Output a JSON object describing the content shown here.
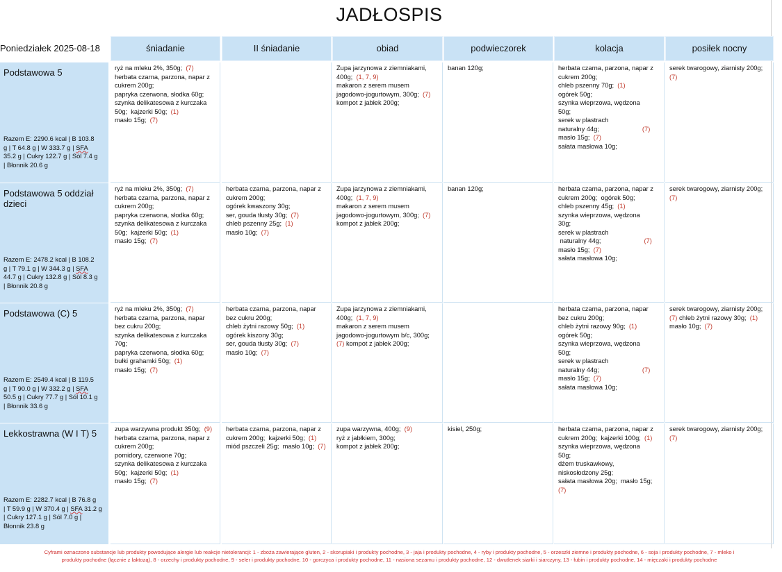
{
  "title": "JADŁOSPIS",
  "date_label": "Poniedziałek 2025-08-18",
  "columns": [
    "śniadanie",
    "II śniadanie",
    "obiad",
    "podwieczorek",
    "kolacja",
    "posiłek nocny"
  ],
  "rows": [
    {
      "name": "Podstawowa 5",
      "summary_lines": [
        "Razem E: 2290.6 kcal | B 103.8",
        "g | T 64.8 g | W 333.7 g | SFA",
        "35.2 g | Cukry 122.7 g | Sól 7.4 g",
        "| Błonnik 20.6 g"
      ],
      "cells": [
        [
          [
            "ryż na mleku 2%, 350g;  ",
            "(7)"
          ],
          [
            "herbata czarna, parzona, napar z"
          ],
          [
            "cukrem 200g;"
          ],
          [
            "papryka czerwona, słodka 60g;"
          ],
          [
            "szynka delikatesowa z kurczaka"
          ],
          [
            "50g;  kajzerki 50g;  ",
            "(1)"
          ],
          [
            "masło 15g;  ",
            "(7)"
          ]
        ],
        [],
        [
          [
            ""
          ],
          [
            "Zupa jarzynowa z ziemniakami,"
          ],
          [
            "400g;  ",
            "(1, 7, 9)"
          ],
          [
            "makaron z serem musem"
          ],
          [
            "jagodowo-jogurtowym, 300g;  ",
            "(7)"
          ],
          [
            "kompot z jabłek 200g;"
          ]
        ],
        [
          [
            "banan 120g;"
          ]
        ],
        [
          [
            ""
          ],
          [
            "herbata czarna, parzona, napar z"
          ],
          [
            "cukrem 200g;"
          ],
          [
            "chleb pszenny 70g;  ",
            "(1)"
          ],
          [
            "ogórek 50g;"
          ],
          [
            "szynka wieprzowa, wędzona"
          ],
          [
            "50g;"
          ],
          [
            "serek w plastrach"
          ],
          [
            "naturalny 44g;                        ",
            "(7)"
          ],
          [
            "masło 15g;  ",
            "(7)"
          ],
          [
            "sałata masłowa 10g;"
          ]
        ],
        [
          [
            "serek twarogowy, ziarnisty 200g;"
          ],
          [
            "(7)"
          ]
        ]
      ]
    },
    {
      "name": "Podstawowa 5 oddział dzieci",
      "summary_lines": [
        "Razem E: 2478.2 kcal | B 108.2",
        "g | T 79.1 g | W 344.3 g | SFA",
        "44.7 g | Cukry 132.8 g | Sól 8.3 g",
        "| Błonnik 20.8 g"
      ],
      "cells": [
        [
          [
            "ryż na mleku 2%, 350g;  ",
            "(7)"
          ],
          [
            "herbata czarna, parzona, napar z"
          ],
          [
            "cukrem 200g;"
          ],
          [
            "papryka czerwona, słodka 60g;"
          ],
          [
            "szynka delikatesowa z kurczaka"
          ],
          [
            "50g;  kajzerki 50g;  ",
            "(1)"
          ],
          [
            "masło 15g;  ",
            "(7)"
          ]
        ],
        [
          [
            ""
          ],
          [
            "herbata czarna, parzona, napar z"
          ],
          [
            "cukrem 200g;"
          ],
          [
            "ogórek kwaszony 30g;"
          ],
          [
            "ser, gouda tłusty 30g;  ",
            "(7)"
          ],
          [
            "chleb pszenny 25g;  ",
            "(1)"
          ],
          [
            "masło 10g;  ",
            "(7)"
          ]
        ],
        [
          [
            ""
          ],
          [
            "Zupa jarzynowa z ziemniakami,"
          ],
          [
            "400g;  ",
            "(1, 7, 9)"
          ],
          [
            "makaron z serem musem"
          ],
          [
            "jagodowo-jogurtowym, 300g;  ",
            "(7)"
          ],
          [
            "kompot z jabłek 200g;"
          ]
        ],
        [
          [
            "banan 120g;"
          ]
        ],
        [
          [
            ""
          ],
          [
            "herbata czarna, parzona, napar z"
          ],
          [
            "cukrem 200g;  ogórek 50g;"
          ],
          [
            "chleb pszenny 45g;  ",
            "(1)"
          ],
          [
            "szynka wieprzowa, wędzona"
          ],
          [
            "30g;"
          ],
          [
            "serek w plastrach"
          ],
          [
            " naturalny 44g;                        ",
            "(7)"
          ],
          [
            "masło 15g;  ",
            "(7)"
          ],
          [
            "sałata masłowa 10g;"
          ]
        ],
        [
          [
            "serek twarogowy, ziarnisty 200g;"
          ],
          [
            "(7)"
          ]
        ]
      ]
    },
    {
      "name": "Podstawowa (C) 5",
      "summary_lines": [
        "Razem E: 2549.4 kcal | B 119.5",
        "g | T 90.0 g | W 332.2 g | SFA",
        "50.5 g | Cukry 77.7 g | Sól 10.1 g",
        "| Błonnik 33.6 g"
      ],
      "cells": [
        [
          [
            "ryż na mleku 2%, 350g;  ",
            "(7)"
          ],
          [
            "herbata czarna, parzona, napar"
          ],
          [
            "bez cukru 200g;"
          ],
          [
            "szynka delikatesowa z kurczaka"
          ],
          [
            "70g;"
          ],
          [
            "papryka czerwona, słodka 60g;"
          ],
          [
            "bułki grahamki 50g;  ",
            "(1)"
          ],
          [
            "masło 15g;  ",
            "(7)"
          ]
        ],
        [
          [
            ""
          ],
          [
            "herbata czarna, parzona, napar"
          ],
          [
            "bez cukru 200g;"
          ],
          [
            "chleb żytni razowy 50g;  ",
            "(1)"
          ],
          [
            "ogórek kiszony 30g;"
          ],
          [
            "ser, gouda tłusty 30g;  ",
            "(7)"
          ],
          [
            "masło 10g;  ",
            "(7)"
          ]
        ],
        [
          [
            ""
          ],
          [
            "Zupa jarzynowa z ziemniakami,"
          ],
          [
            "400g;  ",
            "(1, 7, 9)"
          ],
          [
            "makaron z serem musem"
          ],
          [
            "jagodowo-jogurtowym b/c, 300g;"
          ],
          [
            "",
            "(7)",
            " kompot z jabłek 200g;"
          ]
        ],
        [],
        [
          [
            ""
          ],
          [
            "herbata czarna, parzona, napar"
          ],
          [
            "bez cukru 200g;"
          ],
          [
            "chleb żytni razowy 90g;  ",
            "(1)"
          ],
          [
            "ogórek 50g;"
          ],
          [
            "szynka wieprzowa, wędzona"
          ],
          [
            "50g;"
          ],
          [
            "serek w plastrach"
          ],
          [
            "naturalny 44g;                        ",
            "(7)"
          ],
          [
            "masło 15g;  ",
            "(7)"
          ],
          [
            "sałata masłowa 10g;"
          ]
        ],
        [
          [
            "serek twarogowy, ziarnisty 200g;"
          ],
          [
            "",
            "(7)",
            " chleb żytni razowy 30g;  ",
            "(1)"
          ],
          [
            "masło 10g;  ",
            "(7)"
          ]
        ]
      ]
    },
    {
      "name": "Lekkostrawna (W I T) 5",
      "summary_lines": [
        "Razem E: 2282.7 kcal | B 76.8 g",
        "| T 59.9 g | W 370.4 g | SFA 31.2 g",
        "| Cukry 127.1 g | Sól 7.0 g |",
        "Błonnik 23.8 g"
      ],
      "cells": [
        [
          [
            "zupa warzywna produkt 350g;  ",
            "(9)"
          ],
          [
            "herbata czarna, parzona, napar z"
          ],
          [
            "cukrem 200g;"
          ],
          [
            "pomidory, czerwone 70g;"
          ],
          [
            "szynka delikatesowa z kurczaka"
          ],
          [
            "50g;  kajzerki 50g;  ",
            "(1)"
          ],
          [
            "masło 15g;  ",
            "(7)"
          ]
        ],
        [
          [
            ""
          ],
          [
            "herbata czarna, parzona, napar z"
          ],
          [
            "cukrem 200g;  kajzerki 50g;  ",
            "(1)"
          ],
          [
            "miód pszczeli 25g;  masło 10g;  ",
            "(7)"
          ]
        ],
        [
          [
            "zupa warzywna, 400g;  ",
            "(9)"
          ],
          [
            "ryż z jabłkiem, 300g;"
          ],
          [
            "kompot z jabłek 200g;"
          ]
        ],
        [
          [
            "kisiel, 250g;"
          ]
        ],
        [
          [
            ""
          ],
          [
            "herbata czarna, parzona, napar z"
          ],
          [
            "cukrem 200g;  kajzerki 100g;  ",
            "(1)"
          ],
          [
            "szynka wieprzowa, wędzona"
          ],
          [
            "50g;"
          ],
          [
            "dżem truskawkowy,"
          ],
          [
            "niskosłodzony 25g;"
          ],
          [
            "sałata masłowa 20g;  masło 15g;"
          ],
          [
            "(7)"
          ]
        ],
        [
          [
            "serek twarogowy, ziarnisty 200g;"
          ],
          [
            "(7)"
          ]
        ]
      ]
    }
  ],
  "footer_lines": [
    "Cyframi oznaczono substancje lub produkty powodujące alergie lub reakcje nietolerancji: 1 - zboża zawierające gluten, 2 - skorupiaki i produkty pochodne, 3 - jaja i produkty pochodne, 4 - ryby i produkty pochodne, 5 - orzeszki ziemne i produkty pochodne, 6 - soja i produkty pochodne, 7 - mleko i",
    "produkty pochodne (łącznie z laktozą), 8 - orzechy i produkty pochodne, 9 - seler i produkty pochodne, 10 - gorczyca i produkty pochodne, 11 - nasiona sezamu i produkty pochodne, 12 - dwutlenek siarki i siarczyny, 13 - łubin i produkty pochodne, 14 - mięczaki i produkty pochodne"
  ],
  "colors": {
    "header_bg": "#c9e2f5",
    "allergen_code": "#c0392b",
    "footer_text": "#d03030"
  }
}
